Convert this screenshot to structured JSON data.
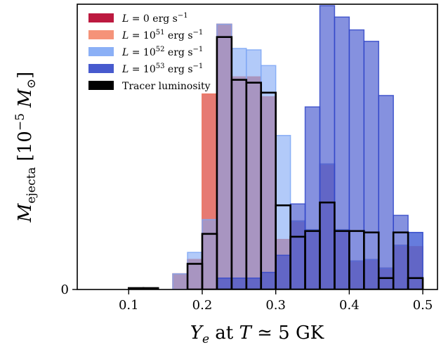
{
  "chart_data": {
    "type": "bar",
    "subtype": "overlapping-histogram",
    "xlabel": "Y_e at T ≃ 5 GK",
    "ylabel": "M_ejecta [10^-5 M_⊙]",
    "xlim": [
      0.03,
      0.52
    ],
    "ylim": [
      0,
      1.0
    ],
    "xticks": [
      0.1,
      0.2,
      0.3,
      0.4,
      0.5
    ],
    "xtick_labels": [
      "0.1",
      "0.2",
      "0.3",
      "0.4",
      "0.5"
    ],
    "yticks": [
      0
    ],
    "ytick_labels": [
      "0"
    ],
    "bin_edges": [
      0.1,
      0.12,
      0.14,
      0.16,
      0.18,
      0.2,
      0.22,
      0.24,
      0.26,
      0.28,
      0.3,
      0.32,
      0.34,
      0.36,
      0.38,
      0.4,
      0.42,
      0.44,
      0.46,
      0.48,
      0.5
    ],
    "legend_position": "upper-left",
    "series": [
      {
        "name": "L = 0 erg s^-1",
        "label_text": "L = 0 erg s",
        "label_sup": "−1",
        "color": "#b5002a",
        "style": "filled",
        "values": [
          0.0,
          0.0,
          0.0,
          0.055,
          0.105,
          0.685,
          0.93,
          0.745,
          0.745,
          0.675,
          0.175,
          0.24,
          0.21,
          0.44,
          0.21,
          0.1,
          0.105,
          0.075,
          0.155,
          0.15
        ]
      },
      {
        "name": "L = 10^51 erg s^-1",
        "label_text": "L = 10",
        "label_exp": "51",
        "label_rest": " erg s",
        "label_sup": "−1",
        "color": "#f4876a",
        "style": "filled",
        "values": [
          0.0,
          0.0,
          0.0,
          0.055,
          0.105,
          0.685,
          0.93,
          0.745,
          0.745,
          0.675,
          0.175,
          0.24,
          0.21,
          0.44,
          0.21,
          0.1,
          0.105,
          0.075,
          0.155,
          0.15
        ]
      },
      {
        "name": "L = 10^52 erg s^-1",
        "label_text": "L = 10",
        "label_exp": "52",
        "label_rest": " erg s",
        "label_sup": "−1",
        "color": "#7ea7f5",
        "style": "filled",
        "values": [
          0.0,
          0.0,
          0.0,
          0.055,
          0.13,
          0.245,
          0.93,
          0.845,
          0.84,
          0.785,
          0.54,
          0.24,
          0.21,
          0.44,
          0.21,
          0.1,
          0.105,
          0.075,
          0.155,
          0.2
        ]
      },
      {
        "name": "L = 10^53 erg s^-1",
        "label_text": "L = 10",
        "label_exp": "53",
        "label_rest": " erg s",
        "label_sup": "−1",
        "color": "#3348c9",
        "style": "filled",
        "values": [
          0.0,
          0.0,
          0.0,
          0.0,
          0.0,
          0.0,
          0.04,
          0.04,
          0.04,
          0.06,
          0.12,
          0.3,
          0.64,
          0.995,
          0.955,
          0.91,
          0.87,
          0.68,
          0.26,
          0.2
        ]
      },
      {
        "name": "Tracer luminosity",
        "label_text": "Tracer luminosity",
        "color": "#000000",
        "style": "step",
        "values": [
          0.005,
          0.005,
          0.0,
          0.0,
          0.09,
          0.195,
          0.885,
          0.735,
          0.725,
          0.69,
          0.295,
          0.185,
          0.205,
          0.305,
          0.205,
          0.205,
          0.2,
          0.04,
          0.2,
          0.04
        ]
      }
    ]
  }
}
